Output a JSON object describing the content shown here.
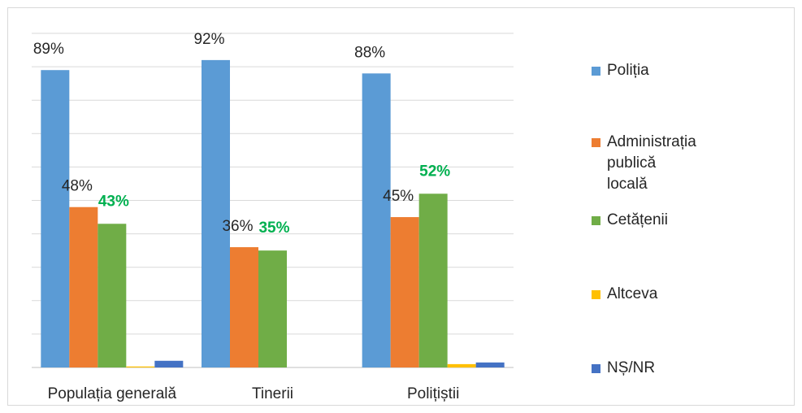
{
  "chart_data": {
    "type": "bar",
    "categories": [
      "Populația generală",
      "Tinerii",
      "Polițiștii"
    ],
    "ylim": [
      0,
      100
    ],
    "grid": true,
    "legend_position": "right",
    "series": [
      {
        "name": "Poliția",
        "color": "#5b9bd5",
        "values": [
          89,
          92,
          88
        ],
        "labels": [
          "89%",
          "92%",
          "88%"
        ],
        "label_style": "plain"
      },
      {
        "name": "Administrația publică locală",
        "color": "#ed7d31",
        "values": [
          48,
          36,
          45
        ],
        "labels": [
          "48%",
          "36%",
          "45%"
        ],
        "label_style": "plain"
      },
      {
        "name": "Cetățenii",
        "color": "#70ad47",
        "values": [
          43,
          35,
          52
        ],
        "labels": [
          "43%",
          "35%",
          "52%"
        ],
        "label_style": "bold-green"
      },
      {
        "name": "Altceva",
        "color": "#ffc000",
        "values": [
          0.3,
          0,
          1
        ],
        "labels": [
          "",
          "",
          ""
        ],
        "label_style": "none"
      },
      {
        "name": "NȘ/NR",
        "color": "#4472c4",
        "values": [
          2,
          0,
          1.5
        ],
        "labels": [
          "",
          "",
          ""
        ],
        "label_style": "none"
      }
    ],
    "label_green_color": "#00b050"
  },
  "legend": {
    "items": [
      {
        "label": "Poliția",
        "color": "#5b9bd5"
      },
      {
        "label": "Administrația publică\nlocală",
        "color": "#ed7d31"
      },
      {
        "label": "Cetățenii",
        "color": "#70ad47"
      },
      {
        "label": "Altceva",
        "color": "#ffc000"
      },
      {
        "label": "NȘ/NR",
        "color": "#4472c4"
      }
    ]
  }
}
